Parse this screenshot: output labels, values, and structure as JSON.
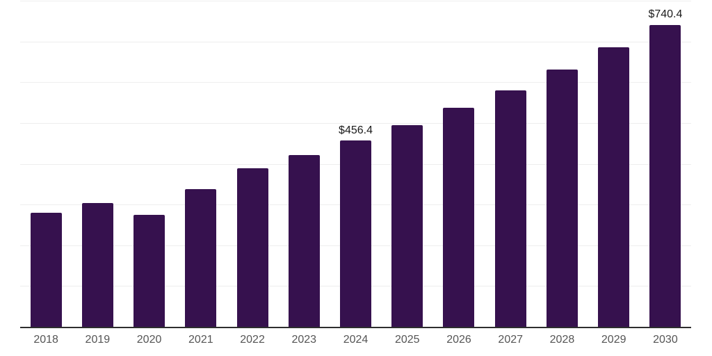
{
  "chart_data": {
    "type": "bar",
    "categories": [
      "2018",
      "2019",
      "2020",
      "2021",
      "2022",
      "2023",
      "2024",
      "2025",
      "2026",
      "2027",
      "2028",
      "2029",
      "2030"
    ],
    "values": [
      280,
      304,
      274,
      338,
      389,
      421,
      456.4,
      494,
      537,
      580,
      632,
      685,
      740.4
    ],
    "labels": [
      "",
      "",
      "",
      "",
      "",
      "",
      "$456.4",
      "",
      "",
      "",
      "",
      "",
      "$740.4"
    ],
    "title": "",
    "xlabel": "",
    "ylabel": "",
    "ylim": [
      0,
      800
    ],
    "grid": "horizontal gridlines every 100 units, no y-axis tick labels",
    "legend": "none",
    "bar_color": "#36114E",
    "gridline_color": "#eeeeee",
    "axis_line_color": "#2e2e2e",
    "x_label_color": "#555555",
    "value_label_color": "#1a1a1a"
  }
}
